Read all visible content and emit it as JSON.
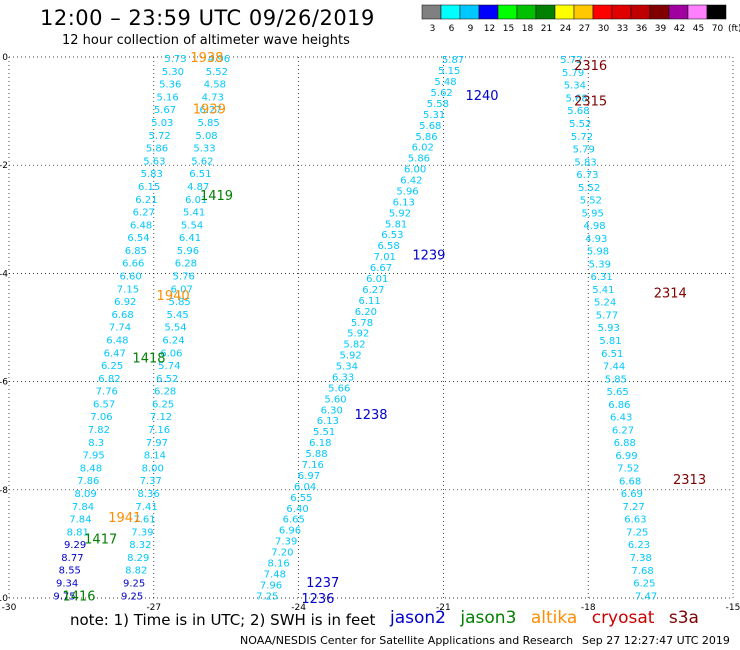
{
  "header": {
    "title": "12:00 – 23:59 UTC 09/26/2019",
    "subtitle": "12 hour collection of altimeter wave heights"
  },
  "legend": {
    "unit": "(ft)",
    "bins": [
      {
        "label": "3",
        "color": "#808080"
      },
      {
        "label": "6",
        "color": "#00ffff"
      },
      {
        "label": "9",
        "color": "#00c8ff"
      },
      {
        "label": "12",
        "color": "#0000ff"
      },
      {
        "label": "15",
        "color": "#00ff00"
      },
      {
        "label": "18",
        "color": "#00c000"
      },
      {
        "label": "21",
        "color": "#008000"
      },
      {
        "label": "24",
        "color": "#ffff00"
      },
      {
        "label": "27",
        "color": "#ffc800"
      },
      {
        "label": "30",
        "color": "#ff0000"
      },
      {
        "label": "33",
        "color": "#e00000"
      },
      {
        "label": "36",
        "color": "#c00000"
      },
      {
        "label": "39",
        "color": "#800000"
      },
      {
        "label": "42",
        "color": "#a000a0"
      },
      {
        "label": "45",
        "color": "#ff80ff"
      },
      {
        "label": "70",
        "color": "#000000"
      }
    ]
  },
  "axes": {
    "lon_ticks": [
      "-30",
      "-27",
      "-24",
      "-21",
      "-18",
      "-15"
    ],
    "lat_ticks": [
      "0",
      "-2",
      "-4",
      "-6",
      "-8",
      "-10"
    ],
    "lon_range": [
      -30,
      -15
    ],
    "lat_range": [
      0,
      -10
    ]
  },
  "satellite_colors": {
    "jason2": "#0000cc",
    "jason3": "#008000",
    "altika": "#ff8c00",
    "cryosat": "#cc0000",
    "s3a": "#800000",
    "default": "#00c8ff"
  },
  "tracks": [
    {
      "id": "track-left-a",
      "start": [
        -26.55,
        -0.02
      ],
      "end": [
        -28.85,
        -9.95
      ],
      "values": [
        "5.73",
        "5.30",
        "5.36",
        "5.16",
        "5.67",
        "5.03",
        "5.72",
        "5.86",
        "5.63",
        "5.83",
        "6.15",
        "6.21",
        "6.27",
        "6.48",
        "6.54",
        "6.85",
        "6.66",
        "6.60",
        "7.15",
        "6.92",
        "6.68",
        "7.74",
        "6.48",
        "6.47",
        "6.25",
        "6.82",
        "7.76",
        "6.57",
        "7.06",
        "7.82",
        "8.3",
        "7.95",
        "8.48",
        "7.86",
        "8.09",
        "7.84",
        "7.84",
        "8.81",
        "9.29",
        "8.77",
        "8.55",
        "9.34",
        "9.75"
      ],
      "dark_from": 38
    },
    {
      "id": "track-left-b",
      "start": [
        -25.65,
        -0.02
      ],
      "end": [
        -27.45,
        -9.95
      ],
      "values": [
        "4.96",
        "5.52",
        "4.58",
        "4.73",
        "6.27",
        "5.85",
        "5.08",
        "5.33",
        "5.62",
        "6.51",
        "4.87",
        "6.01",
        "5.41",
        "5.54",
        "6.41",
        "5.96",
        "6.28",
        "5.76",
        "6.07",
        "5.85",
        "5.45",
        "5.54",
        "6.24",
        "6.06",
        "5.74",
        "6.52",
        "6.28",
        "6.25",
        "7.12",
        "7.16",
        "7.97",
        "8.14",
        "8.00",
        "7.37",
        "8.36",
        "7.41",
        "7.61",
        "7.39",
        "8.32",
        "8.29",
        "8.82",
        "9.25",
        "9.25"
      ],
      "dark_from": 41
    },
    {
      "id": "track-mid",
      "start": [
        -20.8,
        -0.04
      ],
      "end": [
        -24.65,
        -9.95
      ],
      "values": [
        "5.87",
        "5.15",
        "5.48",
        "5.62",
        "5.58",
        "5.31",
        "5.68",
        "5.86",
        "6.02",
        "5.86",
        "6.00",
        "6.42",
        "5.96",
        "6.13",
        "5.92",
        "5.81",
        "6.53",
        "6.58",
        "7.01",
        "6.67",
        "6.01",
        "6.27",
        "6.11",
        "6.20",
        "5.78",
        "5.92",
        "5.82",
        "5.92",
        "5.34",
        "6.33",
        "5.66",
        "5.60",
        "6.30",
        "6.13",
        "5.51",
        "6.18",
        "5.88",
        "7.16",
        "6.97",
        "6.04",
        "6.55",
        "6.40",
        "6.65",
        "6.96",
        "7.39",
        "7.20",
        "8.16",
        "7.48",
        "7.96",
        "7.25"
      ]
    },
    {
      "id": "track-right",
      "start": [
        -18.35,
        -0.04
      ],
      "end": [
        -16.8,
        -9.95
      ],
      "values": [
        "5.72",
        "5.79",
        "5.34",
        "5.68",
        "5.68",
        "5.52",
        "5.72",
        "5.79",
        "5.83",
        "6.73",
        "5.52",
        "5.52",
        "5.95",
        "4.98",
        "4.93",
        "5.98",
        "5.39",
        "6.31",
        "5.41",
        "5.24",
        "5.77",
        "5.93",
        "5.81",
        "6.51",
        "7.44",
        "5.85",
        "5.65",
        "6.86",
        "6.43",
        "6.27",
        "6.88",
        "6.99",
        "7.52",
        "6.68",
        "6.69",
        "7.27",
        "6.63",
        "7.25",
        "6.23",
        "7.38",
        "7.68",
        "6.25",
        "7.47"
      ]
    }
  ],
  "pass_labels": [
    {
      "text": "1938",
      "sat": "altika",
      "lon": -25.9,
      "lat": 0.0
    },
    {
      "text": "1939",
      "sat": "altika",
      "lon": -25.85,
      "lat": -0.95
    },
    {
      "text": "1419",
      "sat": "jason3",
      "lon": -25.7,
      "lat": -2.55
    },
    {
      "text": "1940",
      "sat": "altika",
      "lon": -26.6,
      "lat": -4.4
    },
    {
      "text": "1418",
      "sat": "jason3",
      "lon": -27.1,
      "lat": -5.55
    },
    {
      "text": "1941",
      "sat": "altika",
      "lon": -27.6,
      "lat": -8.5
    },
    {
      "text": "1417",
      "sat": "jason3",
      "lon": -28.1,
      "lat": -8.9
    },
    {
      "text": "1416",
      "sat": "jason3",
      "lon": -28.55,
      "lat": -9.95
    },
    {
      "text": "1240",
      "sat": "jason2",
      "lon": -20.2,
      "lat": -0.7
    },
    {
      "text": "1239",
      "sat": "jason2",
      "lon": -21.3,
      "lat": -3.65
    },
    {
      "text": "1238",
      "sat": "jason2",
      "lon": -22.5,
      "lat": -6.6
    },
    {
      "text": "1237",
      "sat": "jason2",
      "lon": -23.5,
      "lat": -9.7
    },
    {
      "text": "1236",
      "sat": "jason2",
      "lon": -23.6,
      "lat": -10.0
    },
    {
      "text": "2316",
      "sat": "s3a",
      "lon": -17.95,
      "lat": -0.15
    },
    {
      "text": "2315",
      "sat": "s3a",
      "lon": -17.95,
      "lat": -0.8
    },
    {
      "text": "2314",
      "sat": "s3a",
      "lon": -16.3,
      "lat": -4.35
    },
    {
      "text": "2313",
      "sat": "s3a",
      "lon": -15.9,
      "lat": -7.8
    }
  ],
  "note": "note: 1) Time is in UTC; 2) SWH is in feet",
  "satellites": [
    {
      "name": "jason2",
      "color": "#0000cc"
    },
    {
      "name": "jason3",
      "color": "#008000"
    },
    {
      "name": "altika",
      "color": "#ff8c00"
    },
    {
      "name": "cryosat",
      "color": "#cc0000"
    },
    {
      "name": "s3a",
      "color": "#800000"
    }
  ],
  "footer": {
    "credit": "NOAA/NESDIS Center for Satellite Applications and Research",
    "timestamp": "Sep 27 12:27:47 UTC 2019"
  }
}
